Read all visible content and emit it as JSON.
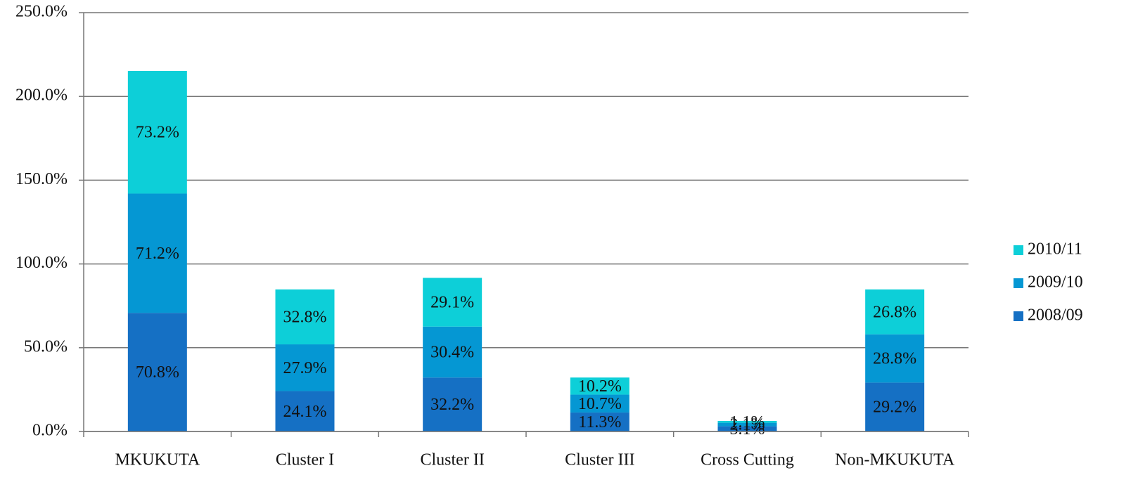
{
  "chart_data": {
    "type": "stacked_bar",
    "categories": [
      "MKUKUTA",
      "Cluster I",
      "Cluster II",
      "Cluster III",
      "Cross Cutting",
      "Non-MKUKUTA"
    ],
    "series": [
      {
        "name": "2008/09",
        "color": "#1570c4",
        "values": [
          70.8,
          24.1,
          32.2,
          11.3,
          3.1,
          29.2
        ],
        "value_labels": [
          "70.8%",
          "24.1%",
          "32.2%",
          "11.3%",
          "3.1%",
          "29.2%"
        ]
      },
      {
        "name": "2009/10",
        "color": "#0597d3",
        "values": [
          71.2,
          27.9,
          30.4,
          10.7,
          2.1,
          28.8
        ],
        "value_labels": [
          "71.2%",
          "27.9%",
          "30.4%",
          "10.7%",
          "2.1%",
          "28.8%"
        ]
      },
      {
        "name": "2010/11",
        "color": "#0dcfd8",
        "values": [
          73.2,
          32.8,
          29.1,
          10.2,
          1.1,
          26.8
        ],
        "value_labels": [
          "73.2%",
          "32.8%",
          "29.1%",
          "10.2%",
          "1.1%",
          "26.8%"
        ]
      }
    ],
    "ylim": [
      0,
      250
    ],
    "yticks": [
      {
        "value": 0,
        "label": "0.0%"
      },
      {
        "value": 50,
        "label": "50.0%"
      },
      {
        "value": 100,
        "label": "100.0%"
      },
      {
        "value": 150,
        "label": "150.0%"
      },
      {
        "value": 200,
        "label": "200.0%"
      },
      {
        "value": 250,
        "label": "250.0%"
      }
    ],
    "grid": true,
    "legend": "right"
  }
}
